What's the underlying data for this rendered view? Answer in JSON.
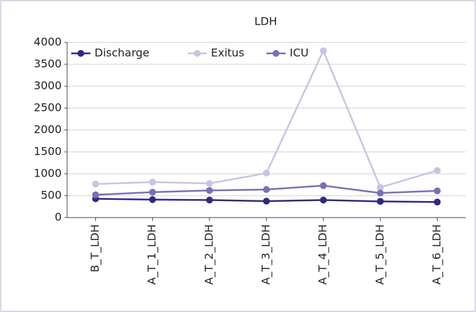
{
  "chart_data": {
    "type": "line",
    "title": "LDH",
    "categories": [
      "B_T_LDH",
      "A_T_1_LDH",
      "A_T_2_LDH",
      "A_T_3_LDH",
      "A_T_4_LDH",
      "A_T_5_LDH",
      "A_T_6_LDH"
    ],
    "series": [
      {
        "name": "Discharge",
        "color": "#2e2a80",
        "values": [
          430,
          410,
          400,
          375,
          400,
          370,
          355
        ]
      },
      {
        "name": "Exitus",
        "color": "#c8c5e2",
        "values": [
          765,
          810,
          780,
          1015,
          3810,
          690,
          1075
        ]
      },
      {
        "name": "ICU",
        "color": "#7a70b4",
        "values": [
          520,
          580,
          620,
          640,
          730,
          560,
          610
        ]
      }
    ],
    "ylim": [
      0,
      4000
    ],
    "yticks": [
      0,
      500,
      1000,
      1500,
      2000,
      2500,
      3000,
      3500,
      4000
    ],
    "grid": true,
    "legend": "top-left"
  }
}
